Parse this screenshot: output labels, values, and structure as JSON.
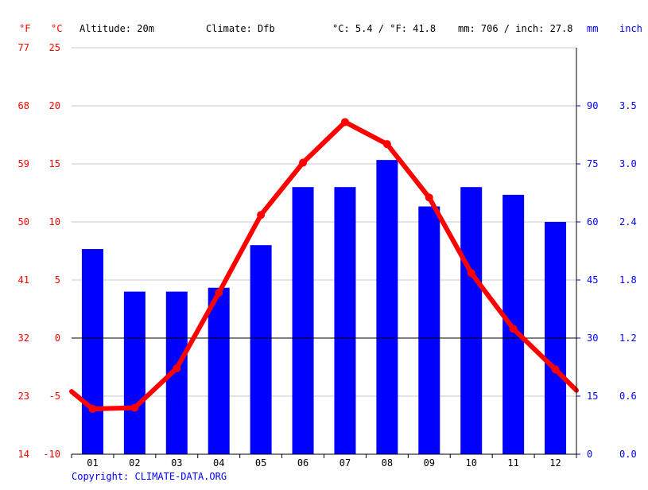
{
  "header": {
    "unit_f": "°F",
    "unit_c": "°C",
    "altitude": "Altitude: 20m",
    "climate": "Climate: Dfb",
    "temp_avg": "°C: 5.4 / °F: 41.8",
    "precip_total": "mm: 706 / inch: 27.8",
    "unit_mm": "mm",
    "unit_inch": "inch"
  },
  "footer": {
    "copyright": "Copyright: CLIMATE-DATA.ORG"
  },
  "colors": {
    "temperature": "#ff0000",
    "precipitation": "#0000ff",
    "grid": "#c8c8c8",
    "zero_line": "#000000"
  },
  "chart_data": {
    "type": "bar",
    "categories": [
      "01",
      "02",
      "03",
      "04",
      "05",
      "06",
      "07",
      "08",
      "09",
      "10",
      "11",
      "12"
    ],
    "series": [
      {
        "type": "bar",
        "axis": "right",
        "unit": "mm",
        "values": [
          53,
          42,
          42,
          43,
          54,
          69,
          69,
          76,
          64,
          69,
          67,
          60
        ]
      },
      {
        "type": "line",
        "axis": "left",
        "unit": "°C",
        "values": [
          -6.1,
          -6.0,
          -2.6,
          3.9,
          10.6,
          15.1,
          18.6,
          16.7,
          12.1,
          5.6,
          0.8,
          -2.7
        ],
        "edge_start": -4.6,
        "edge_end": -4.5
      }
    ],
    "temp_axis": {
      "ylim": [
        -10,
        25
      ],
      "ticks_c": [
        "25",
        "20",
        "15",
        "10",
        "5",
        "0",
        "-5",
        "-10"
      ],
      "ticks_f": [
        "77",
        "68",
        "59",
        "50",
        "41",
        "32",
        "23",
        "14"
      ]
    },
    "precip_axis": {
      "ylim": [
        0,
        105
      ],
      "ticks_mm": [
        "90",
        "75",
        "60",
        "45",
        "30",
        "15",
        "0"
      ],
      "ticks_inch": [
        "3.5",
        "3.0",
        "2.4",
        "1.8",
        "1.2",
        "0.6",
        "0.0"
      ]
    },
    "grid": true
  }
}
